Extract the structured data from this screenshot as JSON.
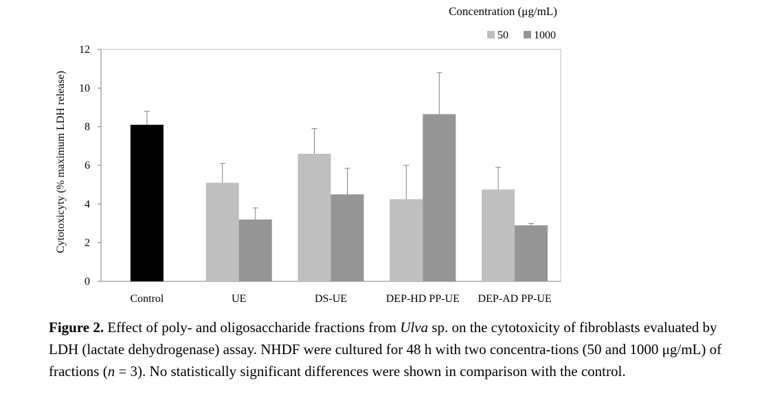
{
  "chart_data": {
    "type": "bar",
    "categories": [
      "Control",
      "UE",
      "DS-UE",
      "DEP-HD PP-UE",
      "DEP-AD PP-UE"
    ],
    "series": [
      {
        "name": "Control",
        "color": "#000000",
        "values": [
          8.1,
          null,
          null,
          null,
          null
        ],
        "errors": [
          0.7,
          null,
          null,
          null,
          null
        ]
      },
      {
        "name": "50",
        "color": "#bfbfbf",
        "values": [
          null,
          5.1,
          6.6,
          4.25,
          4.75
        ],
        "errors": [
          null,
          1.0,
          1.3,
          1.75,
          1.15
        ]
      },
      {
        "name": "1000",
        "color": "#959595",
        "values": [
          null,
          3.2,
          4.5,
          8.65,
          2.9
        ],
        "errors": [
          null,
          0.6,
          1.35,
          2.15,
          0.1
        ]
      }
    ],
    "ylabel": "Cytotoxicyty (% maximum LDH release)",
    "ylim": [
      0,
      12
    ],
    "yticks": [
      0,
      2,
      4,
      6,
      8,
      10,
      12
    ],
    "legend": {
      "title": "Concentration (μg/mL)",
      "position": "top-right",
      "entries": [
        "50",
        "1000"
      ]
    },
    "grid": false
  },
  "caption": {
    "label": "Figure 2.",
    "text_before": " Effect of poly- and oligosaccharide fractions from ",
    "genus": "Ulva",
    "text_middle": " sp. on the cytotoxicity of fibroblasts evaluated by LDH (lactate dehydrogenase) assay. NHDF were cultured for 48 h with two concentra-tions (50 and 1000 μg/mL) of fractions (",
    "n_symbol": "n",
    "text_after": " = 3). No statistically significant differences were shown in comparison with the control."
  }
}
